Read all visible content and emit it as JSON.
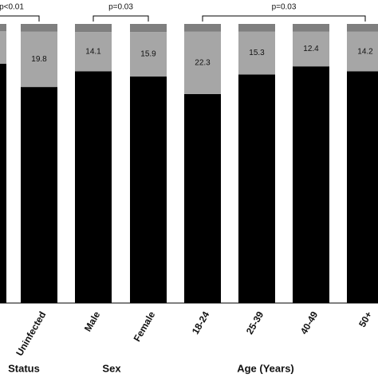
{
  "chart_data": {
    "type": "stacked-bar",
    "categories": [
      "Uninfected",
      "Male",
      "Female",
      "18-24",
      "25-39",
      "40-49",
      "50+"
    ],
    "series": [
      {
        "color": "#000000",
        "values": [
          77.4,
          83.0,
          81.2,
          74.9,
          81.9,
          84.8,
          83.0
        ]
      },
      {
        "color": "#a6a6a6",
        "values": [
          19.8,
          14.1,
          15.9,
          22.3,
          15.3,
          12.4,
          14.2
        ]
      },
      {
        "color": "#7f7f7f",
        "values": [
          2.8,
          2.9,
          2.9,
          2.8,
          2.8,
          2.8,
          2.8
        ]
      }
    ],
    "ylim": [
      0,
      100
    ],
    "groups": [
      "Status",
      "Sex",
      "Age (Years)"
    ],
    "annotations": [
      "p<0.01",
      "p=0.03",
      "p=0.03"
    ]
  }
}
